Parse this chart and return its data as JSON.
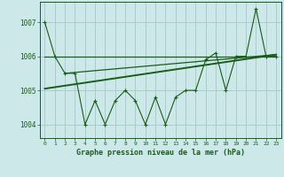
{
  "title": "Graphe pression niveau de la mer (hPa)",
  "bg_color": "#cce8e8",
  "grid_color": "#aacccc",
  "line_color": "#1a5c1a",
  "xlim": [
    -0.5,
    23.5
  ],
  "ylim": [
    1003.6,
    1007.6
  ],
  "yticks": [
    1004,
    1005,
    1006,
    1007
  ],
  "xticks": [
    0,
    1,
    2,
    3,
    4,
    5,
    6,
    7,
    8,
    9,
    10,
    11,
    12,
    13,
    14,
    15,
    16,
    17,
    18,
    19,
    20,
    21,
    22,
    23
  ],
  "series1_x": [
    0,
    1,
    2,
    3,
    4,
    5,
    6,
    7,
    8,
    9,
    10,
    11,
    12,
    13,
    14,
    15,
    16,
    17,
    18,
    19,
    20,
    21,
    22,
    23
  ],
  "series1_y": [
    1007.0,
    1006.0,
    1005.5,
    1005.5,
    1004.0,
    1004.7,
    1004.0,
    1004.7,
    1005.0,
    1004.7,
    1004.0,
    1004.8,
    1004.0,
    1004.8,
    1005.0,
    1005.0,
    1005.9,
    1006.1,
    1005.0,
    1006.0,
    1006.0,
    1007.4,
    1006.0,
    1006.0
  ],
  "series2_x": [
    0,
    23
  ],
  "series2_y": [
    1006.0,
    1006.0
  ],
  "series3_x": [
    0,
    23
  ],
  "series3_y": [
    1005.05,
    1006.05
  ],
  "series4_x": [
    2,
    23
  ],
  "series4_y": [
    1005.5,
    1006.05
  ]
}
